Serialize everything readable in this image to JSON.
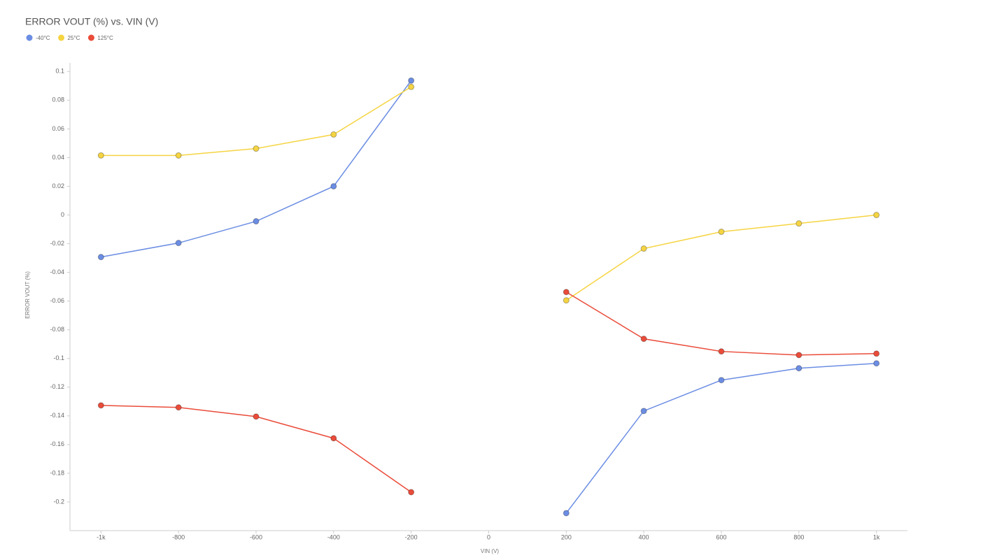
{
  "chart_data": {
    "type": "line",
    "title": "ERROR VOUT (%) vs. VIN (V)",
    "x_label": "VIN (V)",
    "y_label": "ERROR VOUT (%)",
    "x": [
      -1000,
      -800,
      -600,
      -400,
      -200,
      0,
      200,
      400,
      600,
      800,
      1000
    ],
    "series": [
      {
        "name": "-40°C",
        "color": "#6b8de3",
        "values": [
          -0.0293,
          -0.0195,
          -0.0044,
          0.02,
          0.0937,
          null,
          -0.2078,
          -0.1366,
          -0.1151,
          -0.1068,
          -0.1034
        ]
      },
      {
        "name": "25°C",
        "color": "#f5d442",
        "values": [
          0.0415,
          0.0415,
          0.0463,
          0.0561,
          0.0893,
          null,
          -0.0595,
          -0.0234,
          -0.0117,
          -0.0059,
          0
        ]
      },
      {
        "name": "125°C",
        "color": "#ea4c3a",
        "values": [
          -0.1327,
          -0.1341,
          -0.1405,
          -0.1556,
          -0.1932,
          null,
          -0.0537,
          -0.0863,
          -0.0951,
          -0.0976,
          -0.0966
        ]
      }
    ],
    "xlim": [
      -1080,
      1080
    ],
    "ylim": [
      -0.22,
      0.106
    ],
    "xticks": [
      {
        "value": -1000,
        "label": "-1k"
      },
      -800,
      -600,
      -400,
      -200,
      0,
      200,
      400,
      600,
      800,
      {
        "value": 1000,
        "label": "1k"
      }
    ],
    "yticks": [
      0.1,
      0.08,
      0.06,
      0.04,
      0.02,
      0,
      -0.02,
      -0.04,
      -0.06,
      -0.08,
      -0.1,
      -0.12,
      -0.14,
      -0.16,
      -0.18,
      -0.2
    ],
    "legend": "top-left"
  }
}
